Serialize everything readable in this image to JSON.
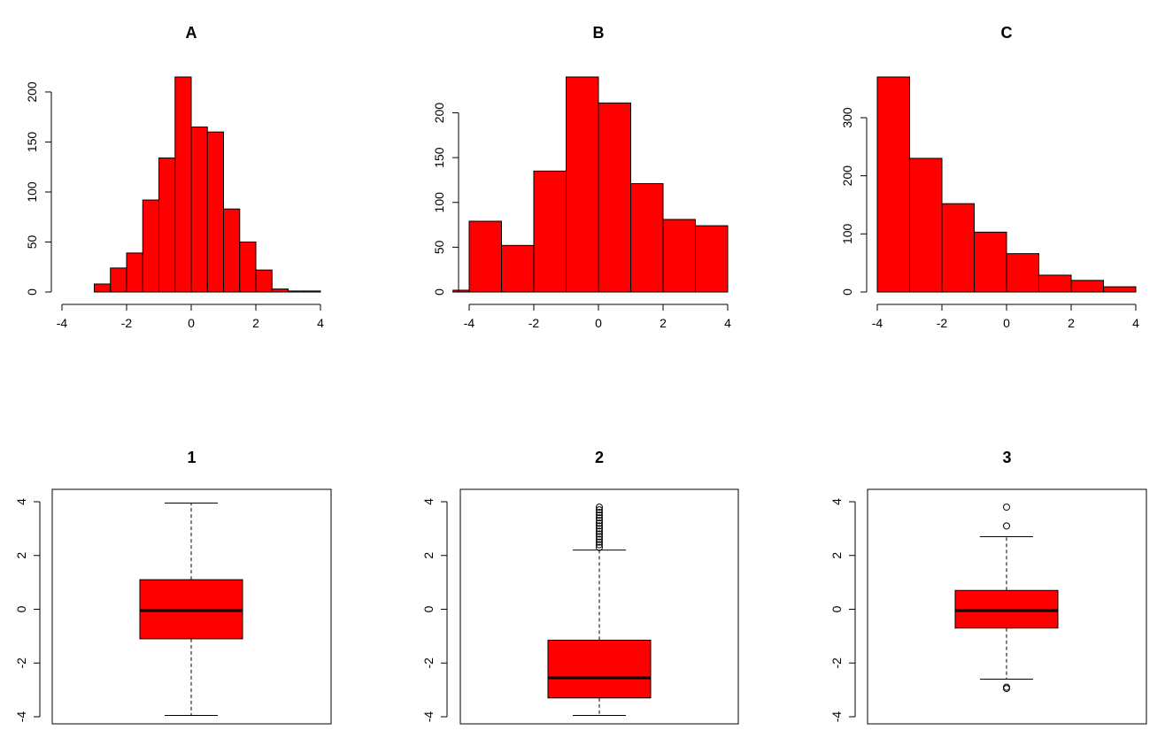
{
  "chart_data": [
    {
      "type": "histogram",
      "title": "A",
      "xlim": [
        -4,
        4
      ],
      "ylim": [
        0,
        215
      ],
      "xticks": [
        -4,
        -2,
        0,
        2,
        4
      ],
      "yticks": [
        0,
        50,
        100,
        150,
        200
      ],
      "bins": [
        {
          "x0": -3.0,
          "x1": -2.5,
          "value": 8
        },
        {
          "x0": -2.5,
          "x1": -2.0,
          "value": 24
        },
        {
          "x0": -2.0,
          "x1": -1.5,
          "value": 39
        },
        {
          "x0": -1.5,
          "x1": -1.0,
          "value": 92
        },
        {
          "x0": -1.0,
          "x1": -0.5,
          "value": 134
        },
        {
          "x0": -0.5,
          "x1": 0.0,
          "value": 215
        },
        {
          "x0": 0.0,
          "x1": 0.5,
          "value": 165
        },
        {
          "x0": 0.5,
          "x1": 1.0,
          "value": 160
        },
        {
          "x0": 1.0,
          "x1": 1.5,
          "value": 83
        },
        {
          "x0": 1.5,
          "x1": 2.0,
          "value": 50
        },
        {
          "x0": 2.0,
          "x1": 2.5,
          "value": 22
        },
        {
          "x0": 2.5,
          "x1": 3.0,
          "value": 3
        },
        {
          "x0": 3.0,
          "x1": 3.5,
          "value": 1
        },
        {
          "x0": 3.5,
          "x1": 4.0,
          "value": 1
        }
      ]
    },
    {
      "type": "histogram",
      "title": "B",
      "xlim": [
        -4,
        4
      ],
      "ylim": [
        0,
        240
      ],
      "xticks": [
        -4,
        -2,
        0,
        2,
        4
      ],
      "yticks": [
        0,
        50,
        100,
        150,
        200
      ],
      "bins": [
        {
          "x0": -4.5,
          "x1": -4.0,
          "value": 2
        },
        {
          "x0": -4.0,
          "x1": -3.0,
          "value": 79
        },
        {
          "x0": -3.0,
          "x1": -2.0,
          "value": 52
        },
        {
          "x0": -2.0,
          "x1": -1.0,
          "value": 135
        },
        {
          "x0": -1.0,
          "x1": 0.0,
          "value": 240
        },
        {
          "x0": 0.0,
          "x1": 1.0,
          "value": 211
        },
        {
          "x0": 1.0,
          "x1": 2.0,
          "value": 121
        },
        {
          "x0": 2.0,
          "x1": 3.0,
          "value": 81
        },
        {
          "x0": 3.0,
          "x1": 4.0,
          "value": 74
        }
      ]
    },
    {
      "type": "histogram",
      "title": "C",
      "xlim": [
        -4,
        4
      ],
      "ylim": [
        0,
        370
      ],
      "xticks": [
        -4,
        -2,
        0,
        2,
        4
      ],
      "yticks": [
        0,
        100,
        200,
        300
      ],
      "bins": [
        {
          "x0": -4.0,
          "x1": -3.0,
          "value": 370
        },
        {
          "x0": -3.0,
          "x1": -2.0,
          "value": 230
        },
        {
          "x0": -2.0,
          "x1": -1.0,
          "value": 152
        },
        {
          "x0": -1.0,
          "x1": 0.0,
          "value": 103
        },
        {
          "x0": 0.0,
          "x1": 1.0,
          "value": 66
        },
        {
          "x0": 1.0,
          "x1": 2.0,
          "value": 29
        },
        {
          "x0": 2.0,
          "x1": 3.0,
          "value": 20
        },
        {
          "x0": 3.0,
          "x1": 4.0,
          "value": 9
        }
      ]
    },
    {
      "type": "boxplot",
      "title": "1",
      "ylim": [
        -4,
        4
      ],
      "yticks": [
        -4,
        -2,
        0,
        2,
        4
      ],
      "whisker_low": -3.95,
      "q1": -1.1,
      "median": -0.05,
      "q3": 1.1,
      "whisker_high": 3.95,
      "outliers": []
    },
    {
      "type": "boxplot",
      "title": "2",
      "ylim": [
        -4,
        4
      ],
      "yticks": [
        -4,
        -2,
        0,
        2,
        4
      ],
      "whisker_low": -3.95,
      "q1": -3.3,
      "median": -2.55,
      "q3": -1.15,
      "whisker_high": 2.2,
      "outliers": [
        2.3,
        2.4,
        2.5,
        2.6,
        2.7,
        2.8,
        2.9,
        3.0,
        3.1,
        3.2,
        3.3,
        3.4,
        3.5,
        3.6,
        3.7,
        3.8
      ]
    },
    {
      "type": "boxplot",
      "title": "3",
      "ylim": [
        -4,
        4
      ],
      "yticks": [
        -4,
        -2,
        0,
        2,
        4
      ],
      "whisker_low": -2.6,
      "q1": -0.7,
      "median": -0.05,
      "q3": 0.7,
      "whisker_high": 2.7,
      "outliers": [
        3.8,
        3.1,
        -2.9,
        -2.95
      ]
    }
  ]
}
